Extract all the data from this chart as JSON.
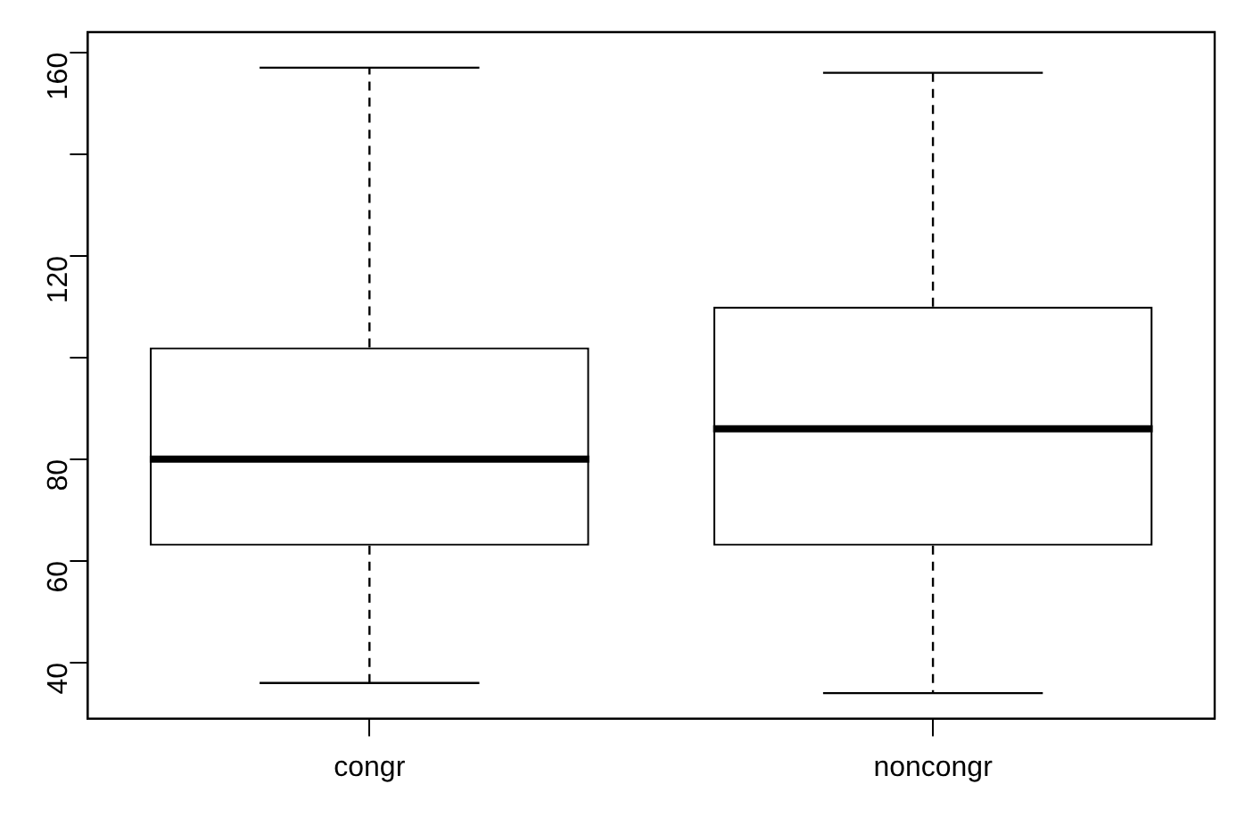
{
  "chart_data": {
    "type": "box",
    "categories": [
      "congr",
      "noncongr"
    ],
    "boxes": [
      {
        "low": 36,
        "q1": 63,
        "median": 80,
        "q3": 102,
        "high": 157
      },
      {
        "low": 34,
        "q1": 63,
        "median": 86,
        "q3": 110,
        "high": 156
      }
    ],
    "ylim": [
      29,
      164
    ],
    "yticks": [
      40,
      60,
      80,
      {
        "value": 100,
        "label": null
      },
      120,
      {
        "value": 140,
        "label": null
      },
      160
    ],
    "grid": false,
    "legend": false
  }
}
